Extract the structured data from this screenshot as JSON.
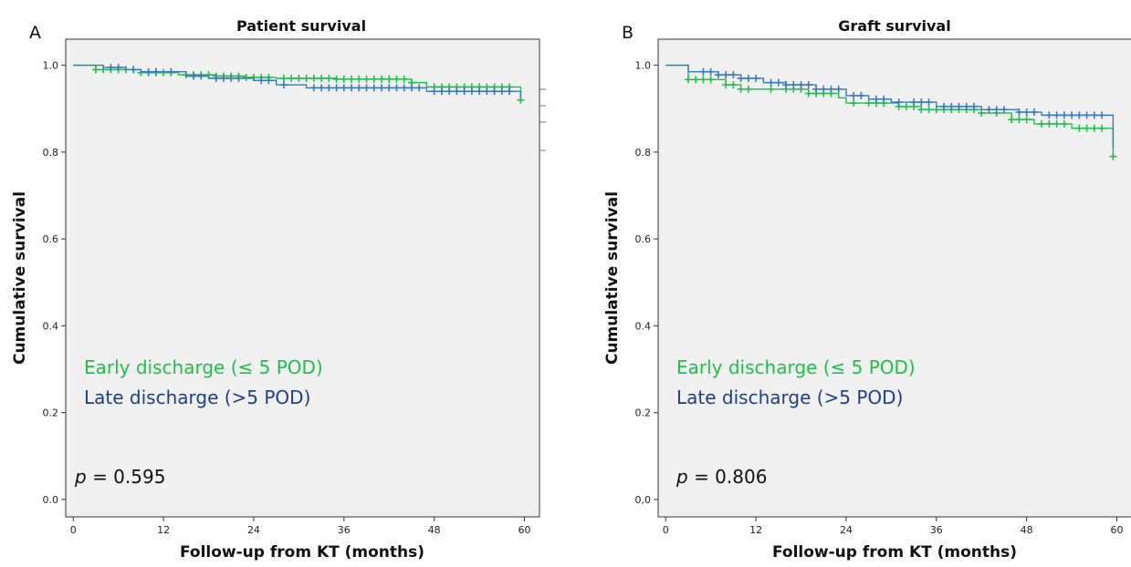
{
  "colors": {
    "early": "#1fbf4a",
    "late": "#3b78c2",
    "late_text": "#1f3f85",
    "plot_bg": "#f0f0f0",
    "axis": "#333333"
  },
  "chart_data": [
    {
      "type": "line",
      "subtype": "kaplan-meier",
      "panel_label": "A",
      "title": "Patient survival",
      "xlabel": "Follow-up from KT (months)",
      "ylabel": "Cumulative survival",
      "xlim": [
        -1,
        62
      ],
      "ylim": [
        -0.04,
        1.06
      ],
      "xticks": [
        0,
        12,
        24,
        36,
        48,
        60
      ],
      "xtick_labels": [
        "0",
        "12",
        "24",
        "36",
        "48",
        "60"
      ],
      "yticks": [
        0.0,
        0.2,
        0.4,
        0.6,
        0.8,
        1.0
      ],
      "ytick_labels": [
        "0.0",
        "0.2",
        "0.4",
        "0.6",
        "0.8",
        "1.0"
      ],
      "grid": false,
      "legend_lines": [
        "Early discharge (≤ 5 POD)",
        "Late discharge (>5 POD)"
      ],
      "p_prefix": "p",
      "p_value": "= 0.595",
      "series": [
        {
          "name": "Early discharge (≤ 5 POD)",
          "color_key": "early",
          "steps": [
            [
              0,
              1.0
            ],
            [
              3,
              0.99
            ],
            [
              9,
              0.983
            ],
            [
              14,
              0.978
            ],
            [
              19,
              0.975
            ],
            [
              23,
              0.972
            ],
            [
              27,
              0.97
            ],
            [
              35,
              0.968
            ],
            [
              45,
              0.96
            ],
            [
              47,
              0.95
            ],
            [
              59.5,
              0.92
            ]
          ],
          "censor_times": [
            3,
            4,
            5,
            6,
            7,
            8,
            9,
            10,
            11,
            12,
            13,
            15,
            16,
            17,
            18,
            19,
            20,
            21,
            22,
            23,
            24,
            25,
            26,
            28,
            29,
            30,
            31,
            32,
            33,
            34,
            35,
            36,
            37,
            38,
            39,
            40,
            41,
            42,
            43,
            44,
            45,
            48,
            49,
            50,
            51,
            52,
            53,
            54,
            55,
            56,
            57,
            58,
            59.5
          ]
        },
        {
          "name": "Late discharge (>5 POD)",
          "color_key": "late",
          "steps": [
            [
              0,
              1.0
            ],
            [
              4,
              0.995
            ],
            [
              7,
              0.99
            ],
            [
              9,
              0.985
            ],
            [
              15,
              0.975
            ],
            [
              18,
              0.97
            ],
            [
              24,
              0.965
            ],
            [
              27,
              0.955
            ],
            [
              31,
              0.948
            ],
            [
              47,
              0.94
            ],
            [
              59.5,
              0.925
            ]
          ],
          "censor_times": [
            5,
            6,
            8,
            10,
            11,
            13,
            16,
            17,
            19,
            20,
            21,
            22,
            25,
            26,
            28,
            32,
            33,
            34,
            35,
            36,
            37,
            38,
            39,
            40,
            41,
            42,
            43,
            44,
            45,
            46,
            48,
            49,
            50,
            51,
            52,
            53,
            54,
            55,
            56,
            57,
            58
          ]
        }
      ]
    },
    {
      "type": "line",
      "subtype": "kaplan-meier",
      "panel_label": "B",
      "title": "Graft survival",
      "xlabel": "Follow-up from KT (months)",
      "ylabel": "Cumulative survival",
      "xlim": [
        -1,
        62
      ],
      "ylim": [
        -0.04,
        1.06
      ],
      "xticks": [
        0,
        12,
        24,
        36,
        48,
        60
      ],
      "xtick_labels": [
        "0",
        "12",
        "24",
        "36",
        "48",
        "60"
      ],
      "yticks": [
        0.0,
        0.2,
        0.4,
        0.6,
        0.8,
        1.0
      ],
      "ytick_labels": [
        "0,0",
        "0.2",
        "0.4",
        "0.6",
        "0.8",
        "1.0"
      ],
      "grid": false,
      "legend_lines": [
        "Early discharge (≤ 5 POD)",
        "Late discharge (>5 POD)"
      ],
      "p_prefix": "p",
      "p_value": "= 0.806",
      "series": [
        {
          "name": "Early discharge (≤ 5 POD)",
          "color_key": "early",
          "steps": [
            [
              0,
              1.0
            ],
            [
              3,
              0.967
            ],
            [
              8,
              0.955
            ],
            [
              10,
              0.945
            ],
            [
              19,
              0.935
            ],
            [
              23,
              0.925
            ],
            [
              24,
              0.913
            ],
            [
              31,
              0.905
            ],
            [
              34,
              0.898
            ],
            [
              42,
              0.89
            ],
            [
              46,
              0.875
            ],
            [
              49,
              0.865
            ],
            [
              54,
              0.855
            ],
            [
              59.5,
              0.79
            ]
          ],
          "censor_times": [
            3,
            4,
            5,
            6,
            8,
            9,
            10,
            11,
            14,
            16,
            17,
            18,
            19,
            20,
            21,
            22,
            25,
            27,
            28,
            29,
            31,
            32,
            33,
            34,
            35,
            36,
            37,
            38,
            39,
            40,
            41,
            42,
            44,
            46,
            47,
            48,
            50,
            51,
            52,
            53,
            55,
            56,
            57,
            58,
            59.5
          ]
        },
        {
          "name": "Late discharge (>5 POD)",
          "color_key": "late",
          "steps": [
            [
              0,
              1.0
            ],
            [
              3,
              0.985
            ],
            [
              7,
              0.978
            ],
            [
              10,
              0.97
            ],
            [
              13,
              0.96
            ],
            [
              16,
              0.955
            ],
            [
              20,
              0.945
            ],
            [
              24,
              0.93
            ],
            [
              27,
              0.922
            ],
            [
              30,
              0.915
            ],
            [
              36,
              0.905
            ],
            [
              42,
              0.898
            ],
            [
              47,
              0.892
            ],
            [
              50,
              0.885
            ],
            [
              59.5,
              0.81
            ]
          ],
          "censor_times": [
            5,
            6,
            7,
            8,
            9,
            10,
            11,
            12,
            14,
            15,
            16,
            17,
            18,
            19,
            20,
            21,
            22,
            23,
            25,
            26,
            28,
            29,
            31,
            33,
            34,
            35,
            37,
            38,
            39,
            40,
            41,
            43,
            44,
            45,
            47,
            48,
            49,
            51,
            52,
            53,
            54,
            55,
            56,
            57,
            58
          ]
        }
      ]
    }
  ]
}
